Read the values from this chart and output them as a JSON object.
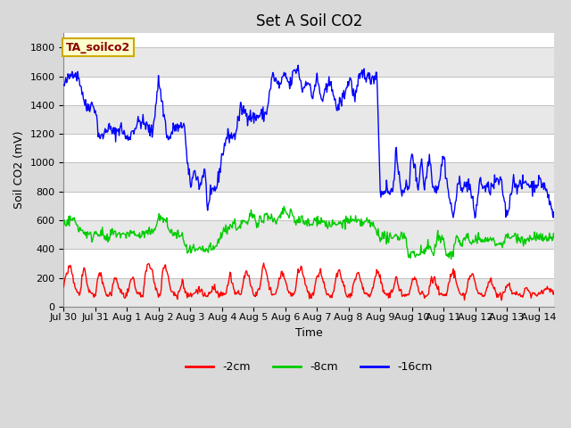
{
  "title": "Set A Soil CO2",
  "ylabel": "Soil CO2 (mV)",
  "xlabel": "Time",
  "legend_label": "TA_soilco2",
  "series_labels": [
    "-2cm",
    "-8cm",
    "-16cm"
  ],
  "series_colors": [
    "#ff0000",
    "#00cc00",
    "#0000ff"
  ],
  "ylim": [
    0,
    1900
  ],
  "yticks": [
    0,
    200,
    400,
    600,
    800,
    1000,
    1200,
    1400,
    1600,
    1800
  ],
  "xtick_labels": [
    "Jul 30",
    "Jul 31",
    "Aug 1",
    "Aug 2",
    "Aug 3",
    "Aug 4",
    "Aug 5",
    "Aug 6",
    "Aug 7",
    "Aug 8",
    "Aug 9",
    "Aug 10",
    "Aug 11",
    "Aug 12",
    "Aug 13",
    "Aug 14"
  ],
  "n_points": 700,
  "bg_color": "#d9d9d9",
  "plot_bg_color": "#ffffff",
  "band_color": "#e8e8e8",
  "grid_color": "#c0c0c0",
  "title_fontsize": 12,
  "axis_fontsize": 9,
  "tick_fontsize": 8,
  "legend_box_color": "#ffffcc",
  "legend_box_edgecolor": "#ccaa00",
  "legend_text_color": "#880000"
}
